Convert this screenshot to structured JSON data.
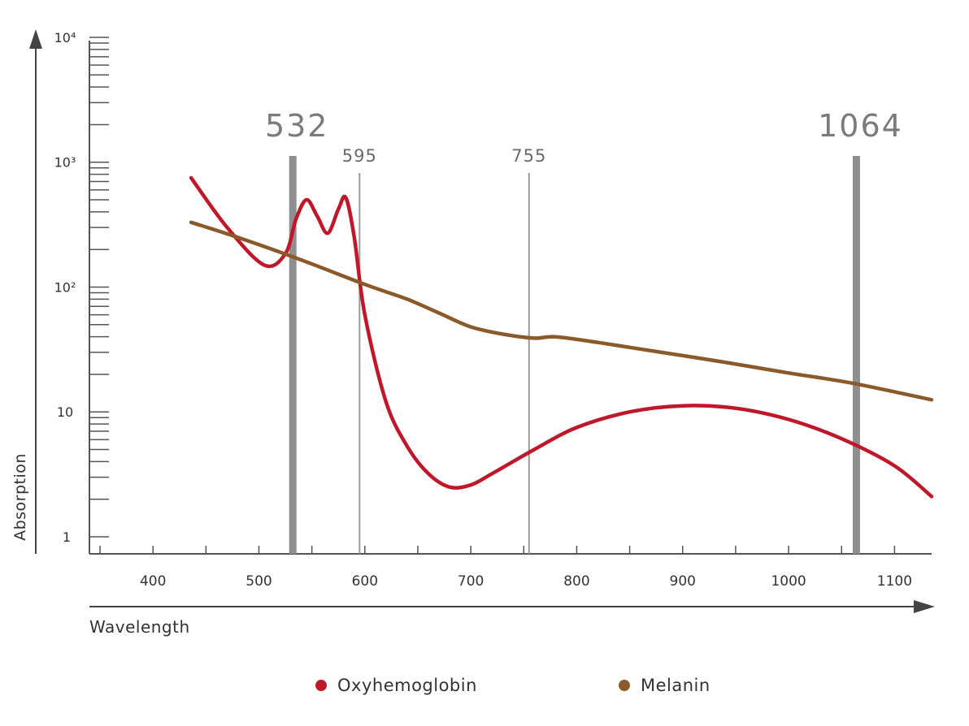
{
  "chart_data": {
    "type": "line",
    "title": "",
    "xlabel": "Wavelength",
    "ylabel": "Absorption",
    "x_ticks": [
      "400",
      "500",
      "600",
      "700",
      "800",
      "900",
      "1000",
      "1100"
    ],
    "y_ticks": [
      "1",
      "10",
      "10²",
      "10³",
      "10⁴"
    ],
    "y_scale": "log",
    "xlim": [
      340,
      1135
    ],
    "ylim": [
      0.73,
      10000
    ],
    "grid": false,
    "legend_position": "bottom-center",
    "laser_lines": [
      {
        "value": 532,
        "label": "532",
        "weight": "thick"
      },
      {
        "value": 595,
        "label": "595",
        "weight": "thin"
      },
      {
        "value": 755,
        "label": "755",
        "weight": "thin"
      },
      {
        "value": 1064,
        "label": "1064",
        "weight": "thick"
      }
    ],
    "series": [
      {
        "name": "Oxyhemoglobin",
        "color": "#c0182b",
        "points": [
          [
            436,
            750
          ],
          [
            470,
            300
          ],
          [
            505,
            150
          ],
          [
            525,
            185
          ],
          [
            535,
            350
          ],
          [
            545,
            500
          ],
          [
            555,
            370
          ],
          [
            565,
            270
          ],
          [
            575,
            420
          ],
          [
            582,
            520
          ],
          [
            590,
            250
          ],
          [
            600,
            60
          ],
          [
            620,
            12
          ],
          [
            640,
            5.3
          ],
          [
            660,
            3.2
          ],
          [
            680,
            2.5
          ],
          [
            700,
            2.6
          ],
          [
            720,
            3.2
          ],
          [
            760,
            5
          ],
          [
            800,
            7.5
          ],
          [
            850,
            10
          ],
          [
            900,
            11.2
          ],
          [
            950,
            10.7
          ],
          [
            1000,
            8.7
          ],
          [
            1050,
            6.1
          ],
          [
            1100,
            3.7
          ],
          [
            1135,
            2.1
          ]
        ]
      },
      {
        "name": "Melanin",
        "color": "#8a5a2b",
        "points": [
          [
            436,
            330
          ],
          [
            480,
            250
          ],
          [
            540,
            165
          ],
          [
            600,
            105
          ],
          [
            640,
            80
          ],
          [
            670,
            62
          ],
          [
            700,
            48
          ],
          [
            730,
            42
          ],
          [
            760,
            39
          ],
          [
            780,
            40
          ],
          [
            820,
            36
          ],
          [
            880,
            30
          ],
          [
            940,
            25
          ],
          [
            1000,
            20.5
          ],
          [
            1060,
            17
          ],
          [
            1135,
            12.5
          ]
        ]
      }
    ]
  }
}
